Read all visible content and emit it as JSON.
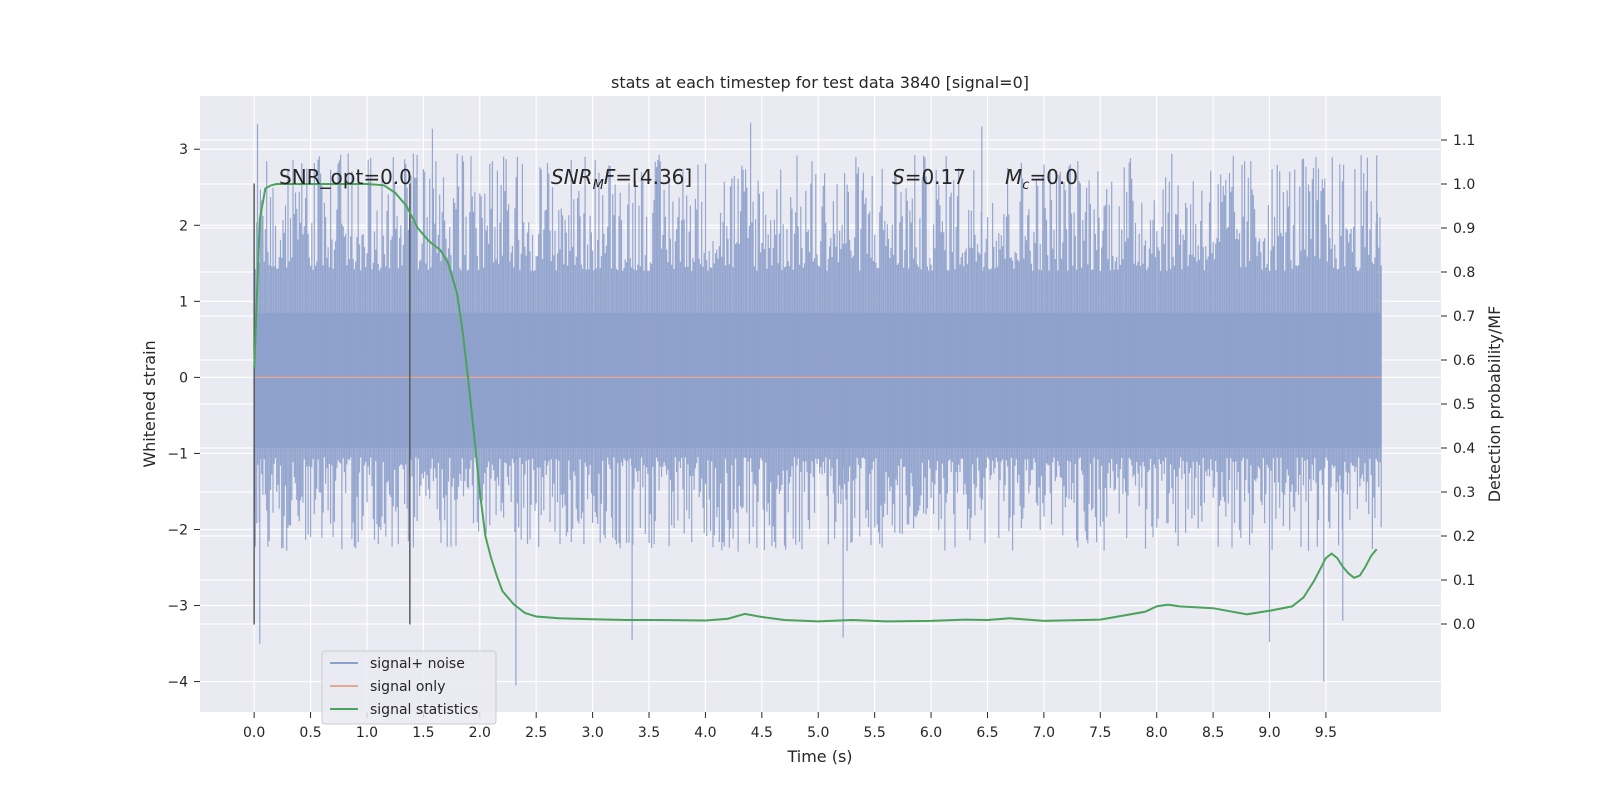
{
  "chart_data": {
    "type": "line",
    "title": "stats at each timestep for test data 3840 [signal=0]",
    "xlabel": "Time (s)",
    "ylabel": "Whitened strain",
    "y2label": "Detection probability/MF",
    "xlim": [
      -0.48,
      10.52
    ],
    "ylim": [
      -4.4,
      3.7
    ],
    "y2lim": [
      -0.2,
      1.2
    ],
    "x_ticks": [
      "0.0",
      "0.5",
      "1.0",
      "1.5",
      "2.0",
      "2.5",
      "3.0",
      "3.5",
      "4.0",
      "4.5",
      "5.0",
      "5.5",
      "6.0",
      "6.5",
      "7.0",
      "7.5",
      "8.0",
      "8.5",
      "9.0",
      "9.5"
    ],
    "y_ticks": [
      "3",
      "2",
      "1",
      "0",
      "−1",
      "−2",
      "−3",
      "−4"
    ],
    "y2_ticks": [
      "1.1",
      "1.0",
      "0.9",
      "0.8",
      "0.7",
      "0.6",
      "0.5",
      "0.4",
      "0.3",
      "0.2",
      "0.1",
      "0.0"
    ],
    "grid": true,
    "legend_placement": "lower-left",
    "vlines": [
      {
        "x": 0.0,
        "y_from": -3.25,
        "y_to": 2.55
      },
      {
        "x": 1.38,
        "y_from": -3.25,
        "y_to": 2.55
      }
    ],
    "annotations": {
      "snr_opt": "SNR_opt=0.0",
      "snr_mf_var": "SNR",
      "snr_mf_sub": "M",
      "snr_mf_f": "F",
      "snr_mf_val": "=[4.36]",
      "s_var": "S",
      "s_val": "=0.17",
      "mc_var": "M",
      "mc_sub": "c",
      "mc_val": "=0.0"
    },
    "series": [
      {
        "name": "signal+ noise",
        "color": "#8da0cb",
        "axis": "left",
        "x_range": [
          0.0,
          9.99
        ],
        "core_envelope": [
          -0.93,
          0.85
        ],
        "upper_envelope": [
          1.4,
          2.95
        ],
        "lower_envelope": [
          -1.05,
          -2.3
        ],
        "extremes": [
          {
            "x": 0.03,
            "y": 3.33
          },
          {
            "x": 0.05,
            "y": -3.5
          },
          {
            "x": 1.58,
            "y": 3.27
          },
          {
            "x": 2.32,
            "y": -4.05
          },
          {
            "x": 3.35,
            "y": -3.45
          },
          {
            "x": 4.4,
            "y": 3.35
          },
          {
            "x": 5.22,
            "y": -3.42
          },
          {
            "x": 6.45,
            "y": 3.3
          },
          {
            "x": 9.0,
            "y": -3.48
          },
          {
            "x": 9.48,
            "y": -4.0
          },
          {
            "x": 9.65,
            "y": -3.2
          },
          {
            "x": 9.95,
            "y": 2.92
          }
        ]
      },
      {
        "name": "signal only",
        "color": "#e8a990",
        "axis": "left",
        "x": [
          0.0,
          9.99
        ],
        "y": [
          0.0,
          0.0
        ]
      },
      {
        "name": "signal statistics",
        "color": "#4aa35a",
        "axis": "right",
        "x": [
          0.0,
          0.05,
          0.1,
          0.15,
          0.2,
          0.3,
          0.5,
          0.8,
          1.0,
          1.15,
          1.25,
          1.35,
          1.45,
          1.55,
          1.65,
          1.72,
          1.8,
          1.85,
          1.9,
          1.95,
          2.0,
          2.05,
          2.1,
          2.15,
          2.2,
          2.3,
          2.4,
          2.5,
          2.7,
          3.0,
          3.3,
          3.6,
          4.0,
          4.2,
          4.35,
          4.5,
          4.7,
          5.0,
          5.3,
          5.6,
          6.0,
          6.3,
          6.5,
          6.7,
          7.0,
          7.5,
          7.9,
          8.0,
          8.1,
          8.2,
          8.5,
          8.8,
          9.0,
          9.2,
          9.3,
          9.4,
          9.5,
          9.55,
          9.6,
          9.65,
          9.7,
          9.75,
          9.8,
          9.85,
          9.9,
          9.95
        ],
        "y": [
          0.58,
          0.92,
          0.99,
          0.997,
          1.0,
          1.0,
          1.0,
          1.0,
          1.0,
          0.997,
          0.98,
          0.95,
          0.9,
          0.87,
          0.85,
          0.82,
          0.75,
          0.66,
          0.55,
          0.43,
          0.3,
          0.2,
          0.15,
          0.11,
          0.075,
          0.045,
          0.025,
          0.017,
          0.013,
          0.011,
          0.009,
          0.009,
          0.008,
          0.012,
          0.023,
          0.016,
          0.009,
          0.006,
          0.009,
          0.006,
          0.007,
          0.01,
          0.009,
          0.013,
          0.007,
          0.01,
          0.028,
          0.04,
          0.044,
          0.04,
          0.036,
          0.022,
          0.03,
          0.04,
          0.06,
          0.1,
          0.15,
          0.16,
          0.15,
          0.13,
          0.115,
          0.105,
          0.11,
          0.13,
          0.155,
          0.17
        ]
      }
    ]
  }
}
